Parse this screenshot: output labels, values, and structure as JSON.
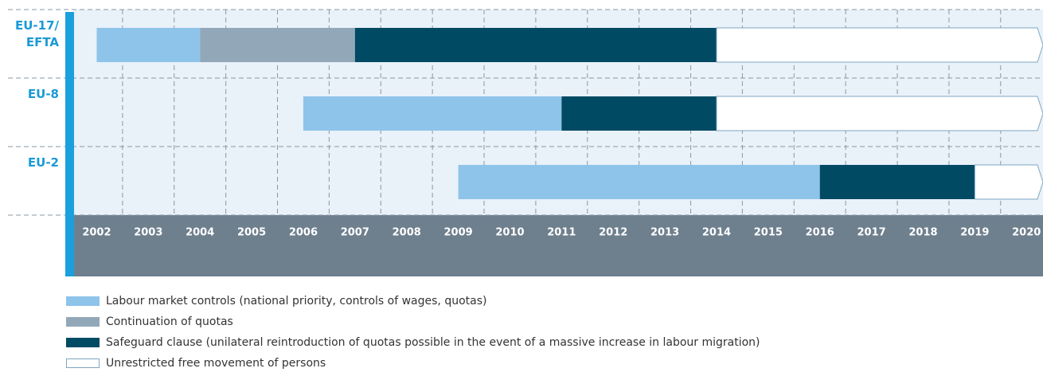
{
  "chart_data": {
    "type": "timeline",
    "xlim": [
      2001.5,
      2020.32
    ],
    "xticks": [
      2002,
      2003,
      2004,
      2005,
      2006,
      2007,
      2008,
      2009,
      2010,
      2011,
      2012,
      2013,
      2014,
      2015,
      2016,
      2017,
      2018,
      2019,
      2020
    ],
    "rows": [
      {
        "label": "EU-17/\nEFTA",
        "segments": [
          {
            "start": 2002,
            "color": "#8ec4ea"
          },
          {
            "start": 2004,
            "color": "#92a8b8"
          },
          {
            "start": 2007,
            "color": "#004a63"
          },
          {
            "start": 2014,
            "color": "#ffffff"
          }
        ]
      },
      {
        "label": "EU-8",
        "segments": [
          {
            "start": 2006,
            "color": "#8ec4ea"
          },
          {
            "start": 2011,
            "color": "#004a63"
          },
          {
            "start": 2014,
            "color": "#ffffff"
          }
        ]
      },
      {
        "label": "EU-2",
        "segments": [
          {
            "start": 2009,
            "color": "#8ec4ea"
          },
          {
            "start": 2016,
            "color": "#004a63"
          },
          {
            "start": 2019,
            "color": "#ffffff"
          }
        ]
      }
    ],
    "legend": [
      {
        "label": "Labour market controls (national priority, controls of wages, quotas)",
        "color": "#8ec4ea"
      },
      {
        "label": "Continuation of quotas",
        "color": "#92a8b8"
      },
      {
        "label": "Safeguard clause (unilateral reintroduction of quotas possible in the event of a massive increase in labour migration)",
        "color": "#004a63"
      },
      {
        "label": "Unrestricted free movement of persons",
        "color": "#ffffff"
      }
    ]
  }
}
